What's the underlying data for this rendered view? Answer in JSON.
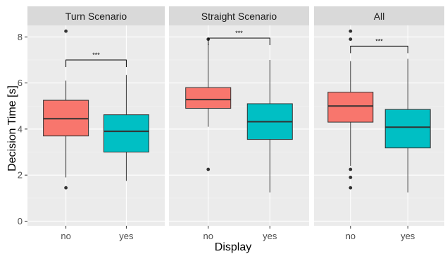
{
  "chart_data": {
    "type": "box",
    "xlabel": "Display",
    "ylabel": "Decision Time [s]",
    "ylim": [
      -0.2,
      8.5
    ],
    "y_ticks": [
      0,
      2,
      4,
      6,
      8
    ],
    "categories": [
      "no",
      "yes"
    ],
    "colors": {
      "no": "#F8766D",
      "yes": "#00BFC4"
    },
    "panels": [
      {
        "title": "Turn Scenario",
        "significance": "***",
        "boxes": [
          {
            "category": "no",
            "min": 1.9,
            "q1": 3.7,
            "median": 4.45,
            "q3": 5.25,
            "max": 6.1,
            "outliers": [
              8.25,
              1.45
            ]
          },
          {
            "category": "yes",
            "min": 1.75,
            "q1": 3.0,
            "median": 3.9,
            "q3": 4.62,
            "max": 6.35,
            "outliers": []
          }
        ]
      },
      {
        "title": "Straight Scenario",
        "significance": "***",
        "boxes": [
          {
            "category": "no",
            "min": 4.1,
            "q1": 4.9,
            "median": 5.28,
            "q3": 5.8,
            "max": 7.7,
            "outliers": [
              7.9,
              2.25
            ]
          },
          {
            "category": "yes",
            "min": 1.25,
            "q1": 3.55,
            "median": 4.32,
            "q3": 5.1,
            "max": 7.0,
            "outliers": []
          }
        ]
      },
      {
        "title": "All",
        "significance": "***",
        "boxes": [
          {
            "category": "no",
            "min": 2.4,
            "q1": 4.3,
            "median": 5.0,
            "q3": 5.6,
            "max": 6.95,
            "outliers": [
              8.25,
              7.9,
              2.25,
              1.9,
              1.45
            ]
          },
          {
            "category": "yes",
            "min": 1.25,
            "q1": 3.18,
            "median": 4.08,
            "q3": 4.85,
            "max": 7.05,
            "outliers": []
          }
        ]
      }
    ]
  }
}
